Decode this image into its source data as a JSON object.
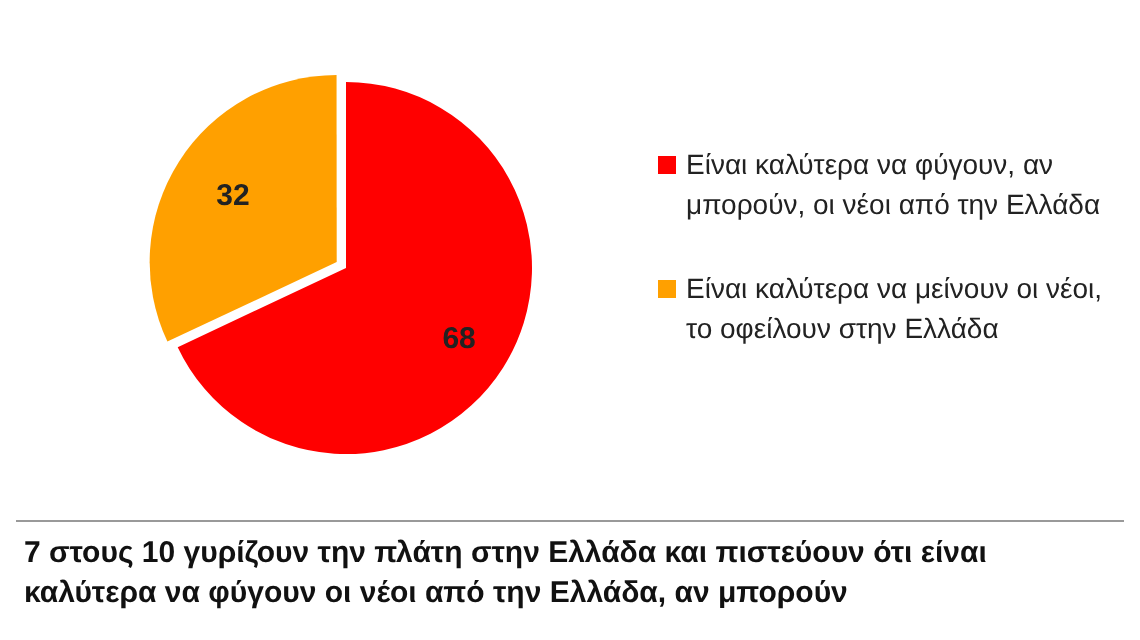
{
  "chart_data": {
    "type": "pie",
    "title": "7 στους 10 γυρίζουν την πλάτη στην Ελλάδα και πιστεύουν ότι είναι καλύτερα να φύγουν οι νέοι από την Ελλάδα, αν μπορούν",
    "categories": [
      "Είναι καλύτερα να φύγουν, αν μπορούν, οι νέοι από την Ελλάδα",
      "Είναι καλύτερα να μείνουν οι νέοι, το οφείλουν στην Ελλάδα"
    ],
    "values": [
      68,
      32
    ],
    "colors": [
      "#ff0000",
      "#ffa000"
    ],
    "data_labels": true,
    "legend": "right"
  }
}
